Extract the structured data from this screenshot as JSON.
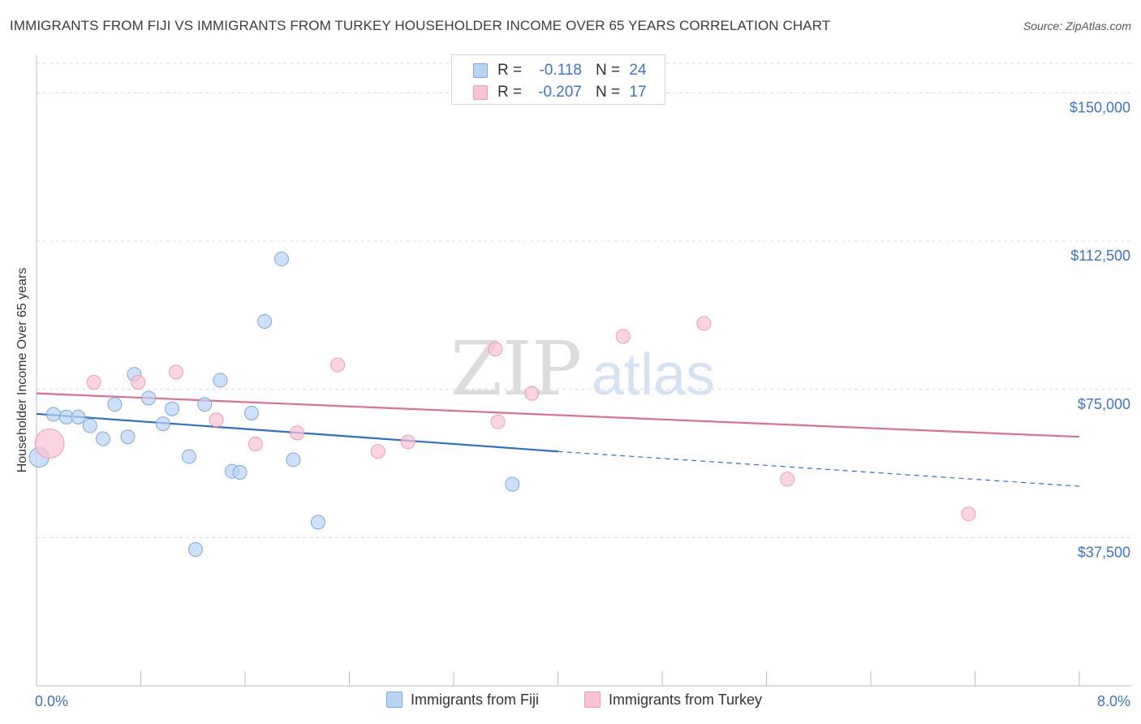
{
  "header": {
    "title": "IMMIGRANTS FROM FIJI VS IMMIGRANTS FROM TURKEY HOUSEHOLDER INCOME OVER 65 YEARS CORRELATION CHART",
    "source": "Source: ZipAtlas.com"
  },
  "watermark": {
    "zip": "ZIP",
    "atlas": "atlas"
  },
  "stats": [
    {
      "r_label": "R =",
      "r_value": "-0.118",
      "n_label": "N =",
      "n_value": "24"
    },
    {
      "r_label": "R =",
      "r_value": "-0.207",
      "n_label": "N =",
      "n_value": "17"
    }
  ],
  "colors": {
    "fiji_fill": "#b9d3f3",
    "fiji_stroke": "#7ca7dd",
    "fiji_line": "#2e6fcc",
    "turkey_fill": "#f8c3d4",
    "turkey_stroke": "#ee9bb6",
    "turkey_line": "#e46b93",
    "axis_text": "#3d73c9",
    "grid": "#d9d9d9"
  },
  "chart_data": {
    "type": "scatter",
    "ylabel": "Householder Income Over 65 years",
    "x_tick_labels": [
      "0.0%",
      "8.0%"
    ],
    "xlim": [
      0,
      8
    ],
    "ylim": [
      0,
      157500
    ],
    "y_ticks": [
      37500,
      75000,
      112500,
      150000
    ],
    "y_tick_labels": [
      "$37,500",
      "$75,000",
      "$112,500",
      "$150,000"
    ],
    "grid": "horizontal dashed",
    "series": [
      {
        "name": "Immigrants from Fiji",
        "points": [
          {
            "x": 0.02,
            "y": 57800,
            "large": true
          },
          {
            "x": 0.13,
            "y": 68700
          },
          {
            "x": 0.23,
            "y": 68000
          },
          {
            "x": 0.32,
            "y": 68000
          },
          {
            "x": 0.41,
            "y": 65800
          },
          {
            "x": 0.51,
            "y": 62500
          },
          {
            "x": 0.6,
            "y": 71200
          },
          {
            "x": 0.7,
            "y": 63000
          },
          {
            "x": 0.75,
            "y": 78800
          },
          {
            "x": 0.86,
            "y": 72800
          },
          {
            "x": 0.97,
            "y": 66300
          },
          {
            "x": 1.04,
            "y": 70100
          },
          {
            "x": 1.17,
            "y": 58000
          },
          {
            "x": 1.22,
            "y": 34500
          },
          {
            "x": 1.29,
            "y": 71200
          },
          {
            "x": 1.41,
            "y": 77300
          },
          {
            "x": 1.5,
            "y": 54300
          },
          {
            "x": 1.56,
            "y": 54000
          },
          {
            "x": 1.65,
            "y": 69000
          },
          {
            "x": 1.75,
            "y": 92200
          },
          {
            "x": 1.88,
            "y": 108000
          },
          {
            "x": 1.97,
            "y": 57200
          },
          {
            "x": 2.16,
            "y": 41400
          },
          {
            "x": 3.65,
            "y": 51000
          }
        ],
        "trend": {
          "x0": 0,
          "y0": 68800,
          "x1": 4.0,
          "y1": 59300,
          "dashed_to_x": 8.0,
          "dashed_to_y": 50500
        }
      },
      {
        "name": "Immigrants from Turkey",
        "points": [
          {
            "x": 0.1,
            "y": 61300,
            "large": true
          },
          {
            "x": 0.44,
            "y": 76800
          },
          {
            "x": 0.78,
            "y": 76800
          },
          {
            "x": 1.07,
            "y": 79400
          },
          {
            "x": 1.38,
            "y": 67300
          },
          {
            "x": 1.68,
            "y": 61200
          },
          {
            "x": 2.0,
            "y": 64000
          },
          {
            "x": 2.31,
            "y": 81200
          },
          {
            "x": 2.62,
            "y": 59300
          },
          {
            "x": 2.85,
            "y": 61700
          },
          {
            "x": 3.52,
            "y": 85200
          },
          {
            "x": 3.54,
            "y": 66800
          },
          {
            "x": 3.8,
            "y": 74000
          },
          {
            "x": 4.5,
            "y": 88400
          },
          {
            "x": 5.12,
            "y": 91700
          },
          {
            "x": 5.76,
            "y": 52300
          },
          {
            "x": 7.15,
            "y": 43500
          }
        ],
        "trend": {
          "x0": 0,
          "y0": 74000,
          "x1": 8.0,
          "y1": 63000
        }
      }
    ]
  }
}
